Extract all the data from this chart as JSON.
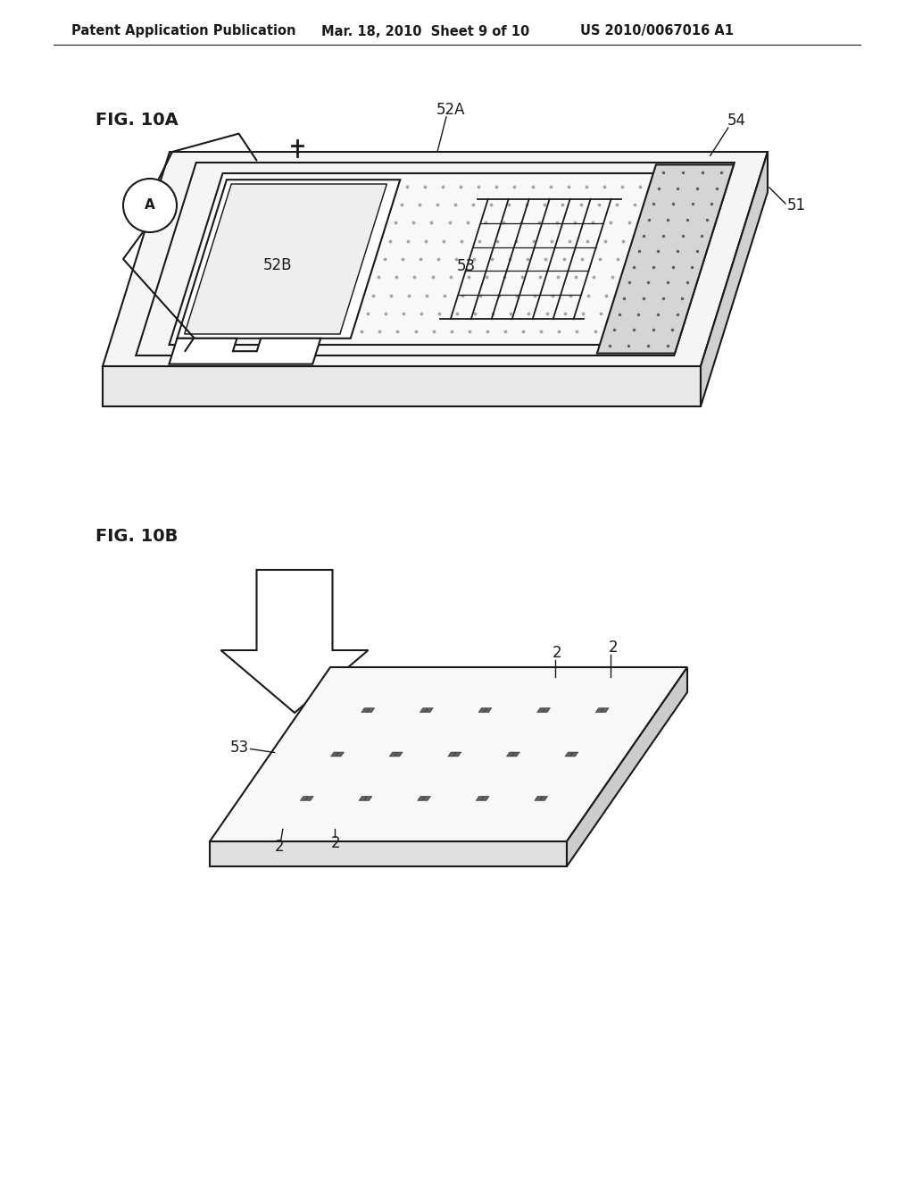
{
  "header_left": "Patent Application Publication",
  "header_mid": "Mar. 18, 2010  Sheet 9 of 10",
  "header_right": "US 2010/0067016 A1",
  "fig10a_label": "FIG. 10A",
  "fig10b_label": "FIG. 10B",
  "bg_color": "#ffffff",
  "line_color": "#1a1a1a",
  "label_fontsize": 12,
  "header_fontsize": 10.5,
  "fig_label_fontsize": 14
}
